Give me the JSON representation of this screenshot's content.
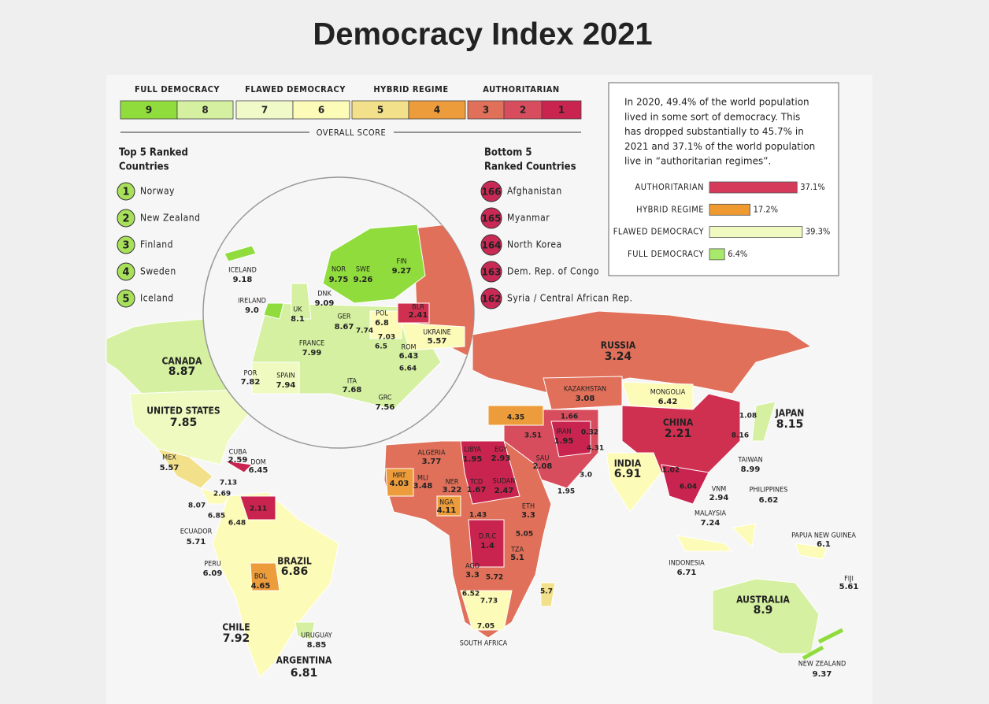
{
  "title": "Democracy Index 2021",
  "legend": {
    "groups": [
      "FULL DEMOCRACY",
      "FLAWED DEMOCRACY",
      "HYBRID REGIME",
      "AUTHORITARIAN"
    ],
    "scores": [
      "9",
      "8",
      "7",
      "6",
      "5",
      "4",
      "3",
      "2",
      "1"
    ],
    "axis_label": "OVERALL SCORE"
  },
  "top5": {
    "title_lines": [
      "Top 5 Ranked",
      "Countries"
    ],
    "items": [
      {
        "rank": "1",
        "name": "Norway"
      },
      {
        "rank": "2",
        "name": "New Zealand"
      },
      {
        "rank": "3",
        "name": "Finland"
      },
      {
        "rank": "4",
        "name": "Sweden"
      },
      {
        "rank": "5",
        "name": "Iceland"
      }
    ]
  },
  "bottom5": {
    "title_lines": [
      "Bottom 5",
      "Ranked Countries"
    ],
    "items": [
      {
        "rank": "166",
        "name": "Afghanistan"
      },
      {
        "rank": "165",
        "name": "Myanmar"
      },
      {
        "rank": "164",
        "name": "North Korea"
      },
      {
        "rank": "163",
        "name": "Dem. Rep. of Congo"
      },
      {
        "rank": "162",
        "name": "Syria / Central African Rep."
      }
    ]
  },
  "info": {
    "lines": [
      "In 2020, 49.4% of the world population",
      "lived in some sort of democracy. This",
      "has dropped substantially to 45.7% in",
      "2021 and 37.1% of the world population",
      "live in “authoritarian regimes”."
    ],
    "population_chart": {
      "type": "bar",
      "categories": [
        "AUTHORITARIAN",
        "HYBRID REGIME",
        "FLAWED DEMOCRACY",
        "FULL DEMOCRACY"
      ],
      "values": [
        37.1,
        17.2,
        39.3,
        6.4
      ],
      "value_labels": [
        "37.1%",
        "17.2%",
        "39.3%",
        "6.4%"
      ],
      "colors": [
        "#d63a5a",
        "#ef9a30",
        "#f0f9c0",
        "#a8e86a"
      ]
    }
  },
  "map_labels": [
    {
      "name": "ICELAND",
      "score": "9.18"
    },
    {
      "name": "NOR",
      "score": "9.75"
    },
    {
      "name": "SWE",
      "score": "9.26"
    },
    {
      "name": "FIN",
      "score": "9.27"
    },
    {
      "name": "DNK",
      "score": "9.09"
    },
    {
      "name": "IRELAND",
      "score": "9.0"
    },
    {
      "name": "UK",
      "score": "8.1"
    },
    {
      "name": "GER",
      "score": "8.67"
    },
    {
      "name": "POL",
      "score": "6.8"
    },
    {
      "name": "BLR",
      "score": "2.41"
    },
    {
      "name": "UKRAINE",
      "score": "5.57"
    },
    {
      "name": "FRANCE",
      "score": "7.99"
    },
    {
      "name": "ROM",
      "score": "6.43"
    },
    {
      "name": "POR",
      "score": "7.82"
    },
    {
      "name": "SPAIN",
      "score": "7.94"
    },
    {
      "name": "ITA",
      "score": "7.68"
    },
    {
      "name": "GRC",
      "score": "7.56"
    },
    {
      "score": "7.74"
    },
    {
      "score": "7.03"
    },
    {
      "score": "6.5"
    },
    {
      "score": "6.64"
    },
    {
      "name": "CANADA",
      "score": "8.87"
    },
    {
      "name": "UNITED STATES",
      "score": "7.85"
    },
    {
      "name": "CUBA",
      "score": "2.59"
    },
    {
      "name": "DOM",
      "score": "6.45"
    },
    {
      "name": "MEX",
      "score": "5.57"
    },
    {
      "score": "7.13"
    },
    {
      "score": "2.69"
    },
    {
      "score": "8.07"
    },
    {
      "score": "6.85"
    },
    {
      "score": "6.48"
    },
    {
      "score": "2.11"
    },
    {
      "name": "ECUADOR",
      "score": "5.71"
    },
    {
      "name": "PERU",
      "score": "6.09"
    },
    {
      "name": "BRAZIL",
      "score": "6.86"
    },
    {
      "name": "BOL",
      "score": "4.65"
    },
    {
      "name": "CHILE",
      "score": "7.92"
    },
    {
      "name": "URUGUAY",
      "score": "8.85"
    },
    {
      "name": "ARGENTINA",
      "score": "6.81"
    },
    {
      "name": "RUSSIA",
      "score": "3.24"
    },
    {
      "name": "KAZAKHSTAN",
      "score": "3.08"
    },
    {
      "name": "MONGOLIA",
      "score": "6.42"
    },
    {
      "name": "CHINA",
      "score": "2.21"
    },
    {
      "name": "JAPAN",
      "score": "8.15"
    },
    {
      "score": "1.08"
    },
    {
      "score": "8.16"
    },
    {
      "score": "4.35"
    },
    {
      "score": "3.51"
    },
    {
      "score": "1.66"
    },
    {
      "name": "IRAN",
      "score": "1.95"
    },
    {
      "score": "0.32"
    },
    {
      "score": "4.31"
    },
    {
      "name": "ALGERIA",
      "score": "3.77"
    },
    {
      "name": "LIBYA",
      "score": "1.95"
    },
    {
      "name": "EGY",
      "score": "2.93"
    },
    {
      "name": "SAU",
      "score": "2.08"
    },
    {
      "name": "INDIA",
      "score": "6.91"
    },
    {
      "name": "TAIWAN",
      "score": "8.99"
    },
    {
      "score": "3.0"
    },
    {
      "name": "MRT",
      "score": "4.03"
    },
    {
      "name": "MLI",
      "score": "3.48"
    },
    {
      "name": "NER",
      "score": "3.22"
    },
    {
      "name": "TCD",
      "score": "1.67"
    },
    {
      "name": "SUDAN",
      "score": "2.47"
    },
    {
      "score": "1.02"
    },
    {
      "score": "6.04"
    },
    {
      "name": "VNM",
      "score": "2.94"
    },
    {
      "name": "PHILIPPINES",
      "score": "6.62"
    },
    {
      "score": "1.95"
    },
    {
      "name": "NGA",
      "score": "4.11"
    },
    {
      "name": "ETH",
      "score": "3.3"
    },
    {
      "score": "1.43"
    },
    {
      "name": "MALAYSIA",
      "score": "7.24"
    },
    {
      "name": "D.R.C",
      "score": "1.4"
    },
    {
      "score": "5.05"
    },
    {
      "name": "TZA",
      "score": "5.1"
    },
    {
      "name": "PAPUA NEW GUINEA",
      "score": "6.1"
    },
    {
      "name": "AGO",
      "score": "3.3"
    },
    {
      "score": "5.72"
    },
    {
      "name": "INDONESIA",
      "score": "6.71"
    },
    {
      "name": "FIJI",
      "score": "5.61"
    },
    {
      "score": "5.7"
    },
    {
      "score": "6.52"
    },
    {
      "score": "7.73"
    },
    {
      "name": "AUSTRALIA",
      "score": "8.9"
    },
    {
      "score": "7.05"
    },
    {
      "name": "SOUTH AFRICA"
    },
    {
      "name": "NEW ZEALAND",
      "score": "9.37"
    }
  ]
}
